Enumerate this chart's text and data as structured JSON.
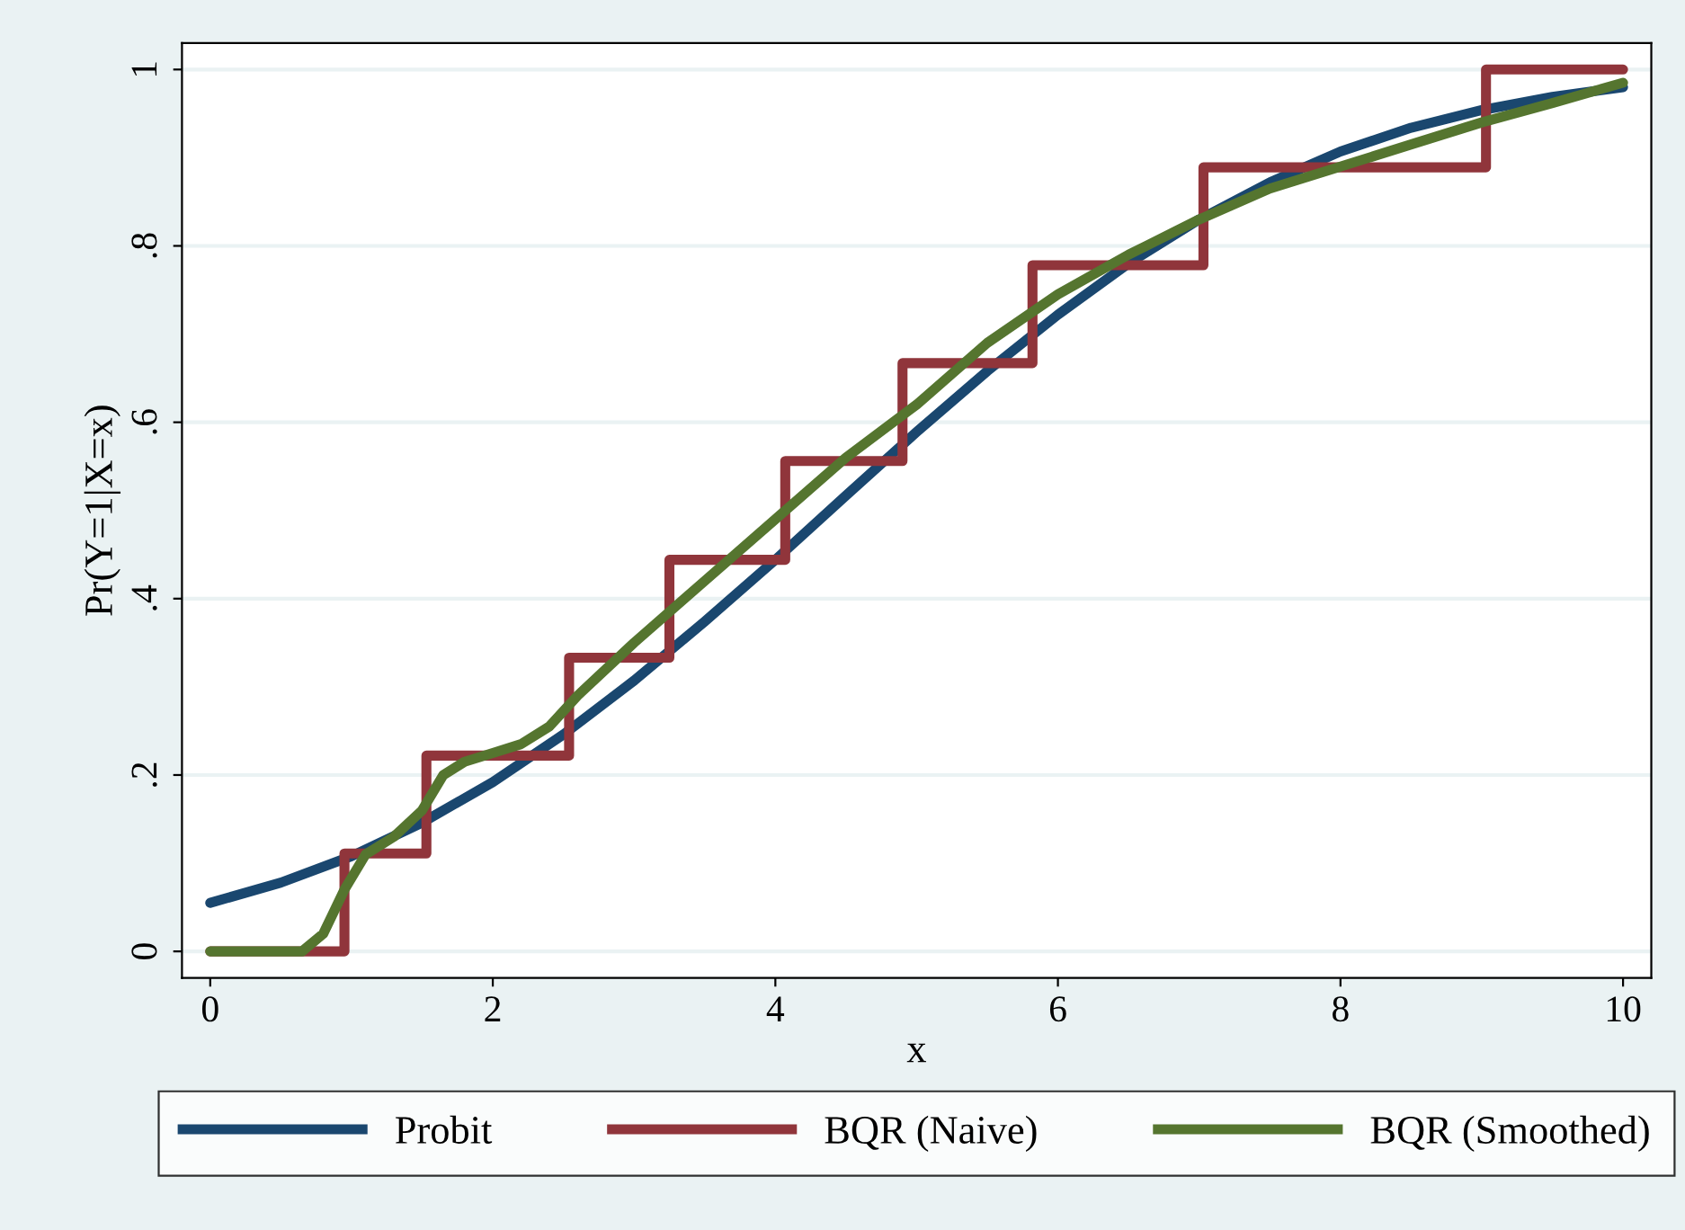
{
  "chart_data": {
    "type": "line",
    "xlabel": "x",
    "ylabel": "Pr(Y=1|X=x)",
    "xlim": [
      -0.2,
      10.2
    ],
    "ylim": [
      -0.03,
      1.03
    ],
    "xticks": [
      0,
      2,
      4,
      6,
      8,
      10
    ],
    "yticks": [
      0,
      {
        "value": 0.2,
        "label": ".2"
      },
      {
        "value": 0.4,
        "label": ".4"
      },
      {
        "value": 0.6,
        "label": ".6"
      },
      {
        "value": 0.8,
        "label": ".8"
      },
      1
    ],
    "grid": "y",
    "legend": "bottom",
    "marker": "none",
    "line_style": "solid",
    "series": [
      {
        "name": "Probit",
        "color": "#1a476f",
        "x": [
          0,
          0.5,
          1,
          1.5,
          2,
          2.5,
          3,
          3.5,
          4,
          4.5,
          5,
          5.5,
          6,
          6.5,
          7,
          7.5,
          8,
          8.5,
          9,
          9.5,
          10
        ],
        "values": [
          0.055,
          0.078,
          0.108,
          0.146,
          0.192,
          0.246,
          0.307,
          0.374,
          0.444,
          0.517,
          0.589,
          0.658,
          0.722,
          0.78,
          0.83,
          0.872,
          0.907,
          0.934,
          0.954,
          0.969,
          0.98
        ]
      },
      {
        "name": "BQR (Naive)",
        "type": "step",
        "color": "#90353b",
        "x": [
          0,
          0.95,
          1.53,
          2.54,
          3.25,
          4.07,
          4.9,
          5.82,
          7.03,
          9.03,
          10
        ],
        "values": [
          0,
          0.111,
          0.222,
          0.333,
          0.444,
          0.556,
          0.667,
          0.778,
          0.889,
          1,
          1
        ]
      },
      {
        "name": "BQR (Smoothed)",
        "color": "#55752f",
        "x": [
          0,
          0.5,
          0.65,
          0.8,
          0.95,
          1.1,
          1.3,
          1.5,
          1.65,
          1.8,
          2,
          2.2,
          2.4,
          2.6,
          3,
          3.5,
          4,
          4.5,
          5,
          5.5,
          6,
          6.5,
          7,
          7.5,
          8,
          8.5,
          9,
          9.5,
          10
        ],
        "values": [
          0,
          0,
          0,
          0.02,
          0.07,
          0.11,
          0.13,
          0.16,
          0.2,
          0.215,
          0.225,
          0.235,
          0.255,
          0.29,
          0.35,
          0.42,
          0.49,
          0.56,
          0.62,
          0.69,
          0.745,
          0.79,
          0.83,
          0.865,
          0.89,
          0.915,
          0.94,
          0.962,
          0.985
        ]
      }
    ]
  }
}
